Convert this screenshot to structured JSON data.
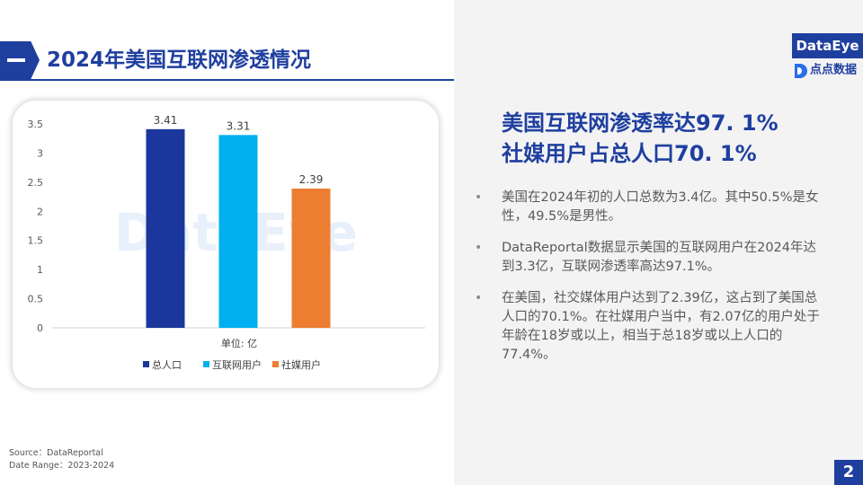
{
  "header": {
    "title": "2024年美国互联网渗透情况"
  },
  "brand": {
    "logo_text": "DataEye",
    "sub_logo_text": "点点数据",
    "watermark_text": "DataEye"
  },
  "colors": {
    "accent": "#1f3f9f",
    "series_total": "#1b369c",
    "series_internet": "#00b0f0",
    "series_social": "#ed7d31"
  },
  "chart_data": {
    "type": "bar",
    "categories": [
      "总人口",
      "互联网用户",
      "社媒用户"
    ],
    "values": [
      3.41,
      3.31,
      2.39
    ],
    "value_labels": [
      "3.41",
      "3.31",
      "2.39"
    ],
    "colors": [
      "#1b369c",
      "#00b0f0",
      "#ed7d31"
    ],
    "xlabel": "单位: 亿",
    "ylim": [
      0,
      3.5
    ],
    "yticks": [
      "0",
      "0.5",
      "1",
      "1.5",
      "2",
      "2.5",
      "3",
      "3.5"
    ],
    "grid": false,
    "legend": "bottom"
  },
  "summary": {
    "headline_line1": "美国互联网渗透率达97. 1%",
    "headline_line2": "社媒用户占总人口70. 1%",
    "bullets": [
      "美国在2024年初的人口总数为3.4亿。其中50.5%是女性，49.5%是男性。",
      "DataReportal数据显示美国的互联网用户在2024年达到3.3亿，互联网渗透率高达97.1%。",
      "在美国，社交媒体用户达到了2.39亿，这占到了美国总人口的70.1%。在社媒用户当中，有2.07亿的用户处于年龄在18岁或以上，相当于总18岁或以上人口的77.4%。"
    ],
    "bullet_symbol": "•"
  },
  "footer": {
    "source": "Source：DataReportal",
    "date_range": "Date Range：2023-2024",
    "page_number": "2"
  }
}
